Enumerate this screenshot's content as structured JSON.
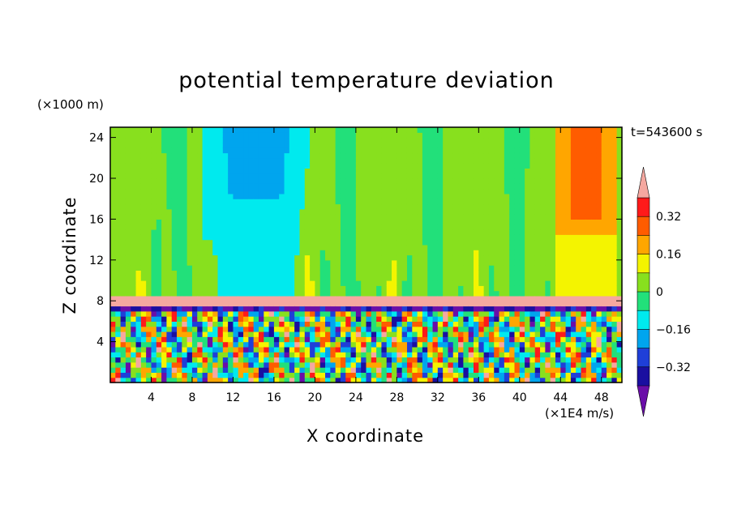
{
  "chart_data": {
    "type": "heatmap",
    "title": "potential temperature deviation",
    "xlabel": "X coordinate",
    "ylabel": "Z coordinate",
    "x_unit": "(×1E4 m/s)",
    "y_unit": "(×1000 m)",
    "time_label": "t=543600 s",
    "xlim": [
      0,
      50
    ],
    "ylim": [
      0,
      25
    ],
    "x_ticks": [
      4,
      8,
      12,
      16,
      20,
      24,
      28,
      32,
      36,
      40,
      44,
      48
    ],
    "y_ticks": [
      4,
      8,
      12,
      16,
      20,
      24
    ],
    "colorbar": {
      "levels": [
        -0.4,
        -0.32,
        -0.24,
        -0.16,
        -0.08,
        0,
        0.08,
        0.16,
        0.24,
        0.32,
        0.4
      ],
      "tick_labels": [
        "0.32",
        "0.16",
        "0",
        "−0.16",
        "−0.32"
      ],
      "tick_values": [
        0.32,
        0.16,
        0,
        -0.16,
        -0.32
      ],
      "colors": [
        "#6a0ea8",
        "#1a0fa0",
        "#1f3fd8",
        "#00a5ee",
        "#00eaee",
        "#22e07a",
        "#88e01e",
        "#f4f400",
        "#ffa600",
        "#ff5c00",
        "#ff1a1a",
        "#f5a8a0"
      ],
      "extend": "both"
    },
    "features": {
      "inversion_band_z": [
        7.6,
        8.5
      ],
      "inversion_value": 0.45,
      "warm_plume_x": [
        43.5,
        49.5
      ],
      "warm_plume_value": 0.2,
      "cool_column_x": [
        13,
        15.5
      ],
      "cool_column_value": -0.2,
      "upper_background_value": 0.02,
      "mixed_layer_z": [
        0,
        7.5
      ]
    }
  }
}
